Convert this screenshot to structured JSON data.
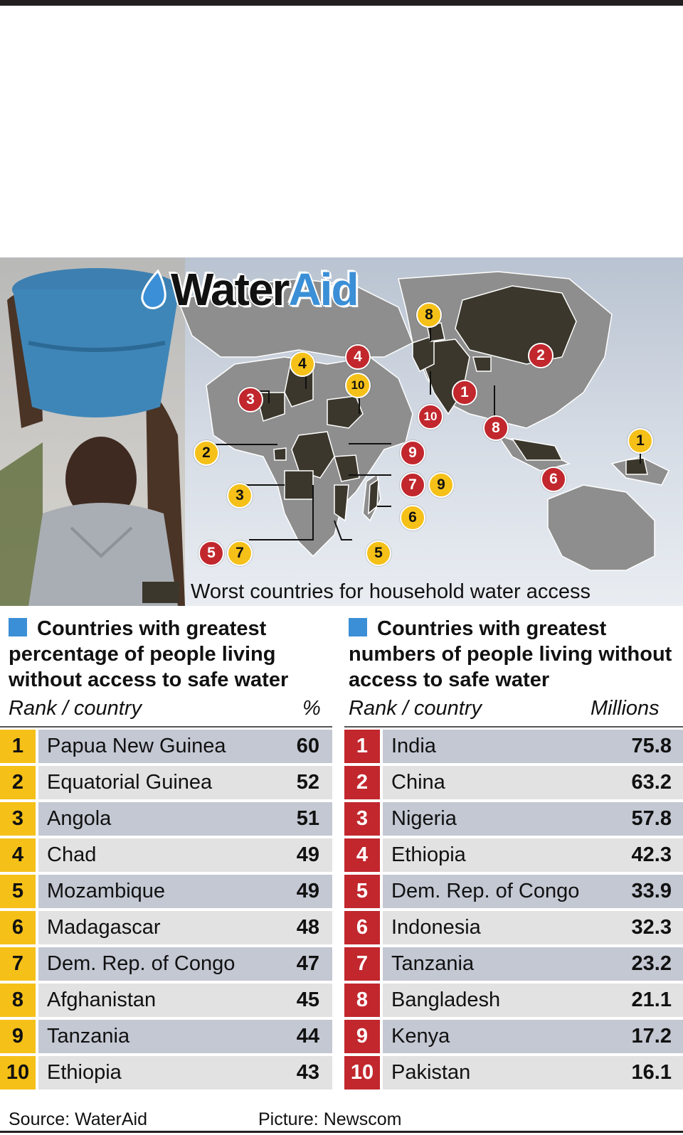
{
  "logo": {
    "part1": "Water",
    "part2": "Aid"
  },
  "legend": {
    "label": "Worst countries for household water access"
  },
  "colors": {
    "yellow": "#f5c018",
    "red": "#c1272d",
    "dark_country": "#3b372c",
    "land": "#8e8e8e",
    "accent_blue": "#3b8fd6",
    "row_dark": "#c3c8d3",
    "row_light": "#e2e2e2"
  },
  "left_panel": {
    "title": "Countries with greatest percentage of people living without access to safe water",
    "col_rank": "Rank / country",
    "col_value": "%"
  },
  "right_panel": {
    "title": "Countries with greatest numbers of people living without access to safe water",
    "col_rank": "Rank / country",
    "col_value": "Millions"
  },
  "chart_data": [
    {
      "type": "table",
      "title": "Countries with greatest percentage of people living without access to safe water",
      "columns": [
        "Rank / country",
        "%"
      ],
      "rows": [
        {
          "rank": "1",
          "country": "Papua New Guinea",
          "value": "60"
        },
        {
          "rank": "2",
          "country": "Equatorial Guinea",
          "value": "52"
        },
        {
          "rank": "3",
          "country": "Angola",
          "value": "51"
        },
        {
          "rank": "4",
          "country": "Chad",
          "value": "49"
        },
        {
          "rank": "5",
          "country": "Mozambique",
          "value": "49"
        },
        {
          "rank": "6",
          "country": "Madagascar",
          "value": "48"
        },
        {
          "rank": "7",
          "country": "Dem. Rep. of Congo",
          "value": "47"
        },
        {
          "rank": "8",
          "country": "Afghanistan",
          "value": "45"
        },
        {
          "rank": "9",
          "country": "Tanzania",
          "value": "44"
        },
        {
          "rank": "10",
          "country": "Ethiopia",
          "value": "43"
        }
      ]
    },
    {
      "type": "table",
      "title": "Countries with greatest numbers of people living without access to safe water",
      "columns": [
        "Rank / country",
        "Millions"
      ],
      "rows": [
        {
          "rank": "1",
          "country": "India",
          "value": "75.8"
        },
        {
          "rank": "2",
          "country": "China",
          "value": "63.2"
        },
        {
          "rank": "3",
          "country": "Nigeria",
          "value": "57.8"
        },
        {
          "rank": "4",
          "country": "Ethiopia",
          "value": "42.3"
        },
        {
          "rank": "5",
          "country": "Dem. Rep. of Congo",
          "value": "33.9"
        },
        {
          "rank": "6",
          "country": "Indonesia",
          "value": "32.3"
        },
        {
          "rank": "7",
          "country": "Tanzania",
          "value": "23.2"
        },
        {
          "rank": "8",
          "country": "Bangladesh",
          "value": "21.1"
        },
        {
          "rank": "9",
          "country": "Kenya",
          "value": "17.2"
        },
        {
          "rank": "10",
          "country": "Pakistan",
          "value": "16.1"
        }
      ]
    }
  ],
  "map_markers": [
    {
      "label": "1",
      "color": "yellow",
      "country": "Papua New Guinea"
    },
    {
      "label": "2",
      "color": "yellow",
      "country": "Equatorial Guinea"
    },
    {
      "label": "3",
      "color": "yellow",
      "country": "Angola"
    },
    {
      "label": "4",
      "color": "yellow",
      "country": "Chad"
    },
    {
      "label": "5",
      "color": "yellow",
      "country": "Mozambique"
    },
    {
      "label": "6",
      "color": "yellow",
      "country": "Madagascar"
    },
    {
      "label": "7",
      "color": "yellow",
      "country": "Dem. Rep. of Congo"
    },
    {
      "label": "8",
      "color": "yellow",
      "country": "Afghanistan"
    },
    {
      "label": "9",
      "color": "yellow",
      "country": "Tanzania"
    },
    {
      "label": "10",
      "color": "yellow",
      "country": "Ethiopia"
    },
    {
      "label": "1",
      "color": "red",
      "country": "India"
    },
    {
      "label": "2",
      "color": "red",
      "country": "China"
    },
    {
      "label": "3",
      "color": "red",
      "country": "Nigeria"
    },
    {
      "label": "4",
      "color": "red",
      "country": "Ethiopia"
    },
    {
      "label": "5",
      "color": "red",
      "country": "Dem. Rep. of Congo"
    },
    {
      "label": "6",
      "color": "red",
      "country": "Indonesia"
    },
    {
      "label": "7",
      "color": "red",
      "country": "Tanzania"
    },
    {
      "label": "8",
      "color": "red",
      "country": "Bangladesh"
    },
    {
      "label": "9",
      "color": "red",
      "country": "Kenya"
    },
    {
      "label": "10",
      "color": "red",
      "country": "Pakistan"
    }
  ],
  "footer": {
    "source": "Source: WaterAid",
    "picture": "Picture: Newscom"
  }
}
